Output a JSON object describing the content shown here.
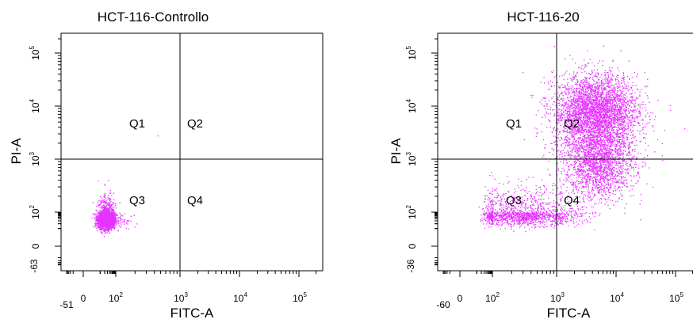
{
  "colors": {
    "events": "#e633ff",
    "axis": "#000000",
    "gate": "#000000"
  },
  "chart_data": [
    {
      "type": "scatter",
      "title": "HCT-116-Controllo",
      "xlabel": "FITC-A",
      "ylabel": "PI-A",
      "x_scale": "biexponential",
      "y_scale": "biexponential",
      "x_tick_labels": [
        "-51",
        "0",
        "10^2",
        "10^3",
        "10^4",
        "10^5"
      ],
      "y_tick_labels": [
        "-63",
        "0",
        "10^2",
        "10^3",
        "10^4",
        "10^5"
      ],
      "gate_lines": {
        "x": 1000,
        "y": 1000
      },
      "quadrants": [
        "Q1",
        "Q2",
        "Q3",
        "Q4"
      ],
      "populations": [
        {
          "x_center": 25,
          "y_center": 40,
          "x_spread_decades": 0.28,
          "y_spread_decades": 0.28,
          "count": 3200
        }
      ],
      "outliers": [
        {
          "x": 450,
          "y": 2800
        }
      ],
      "grid": false
    },
    {
      "type": "scatter",
      "title": "HCT-116-20",
      "xlabel": "FITC-A",
      "ylabel": "PI-A",
      "x_scale": "biexponential",
      "y_scale": "biexponential",
      "x_tick_labels": [
        "-60",
        "0",
        "10^2",
        "10^3",
        "10^4",
        "10^5"
      ],
      "y_tick_labels": [
        "-36",
        "0",
        "10^2",
        "10^3",
        "10^4",
        "10^5"
      ],
      "gate_lines": {
        "x": 1000,
        "y": 1000
      },
      "quadrants": [
        "Q1",
        "Q2",
        "Q3",
        "Q4"
      ],
      "populations": [
        {
          "x_center": 300,
          "y_center": 70,
          "x_spread_decades": 0.45,
          "y_spread_decades": 0.3,
          "count": 1500
        },
        {
          "x_center": 5000,
          "y_center": 900,
          "x_spread_decades": 0.3,
          "y_spread_decades": 0.35,
          "count": 2000
        },
        {
          "x_center": 4500,
          "y_center": 8000,
          "x_spread_decades": 0.35,
          "y_spread_decades": 0.35,
          "count": 3500
        }
      ],
      "outliers": [],
      "grid": false
    }
  ]
}
